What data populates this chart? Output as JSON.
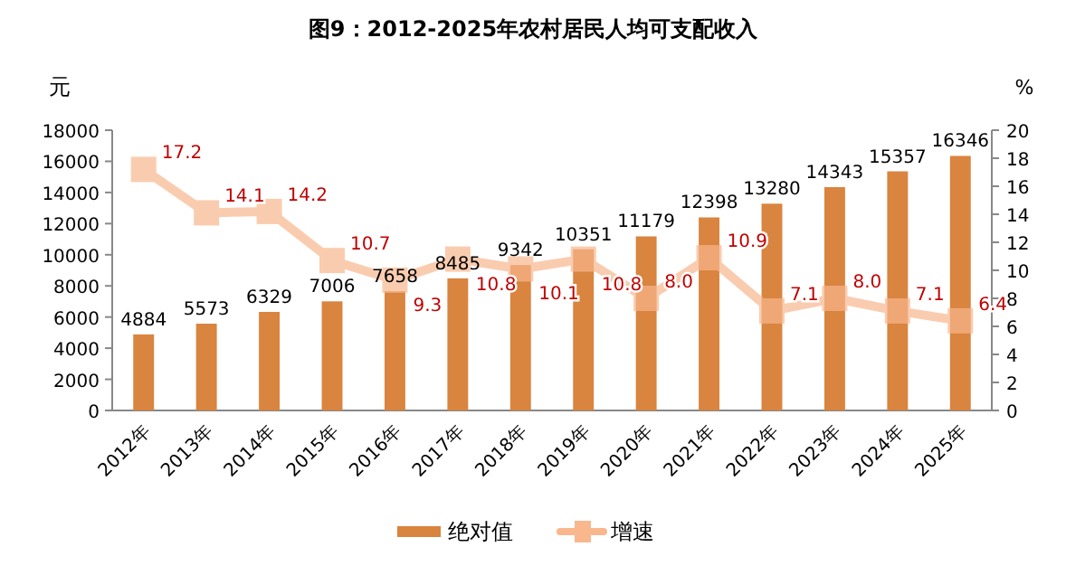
{
  "chart_data": {
    "type": "bar",
    "title": "图9：2012-2025年农村居民人均可支配收入",
    "categories": [
      "2012年",
      "2013年",
      "2014年",
      "2015年",
      "2016年",
      "2017年",
      "2018年",
      "2019年",
      "2020年",
      "2021年",
      "2022年",
      "2023年",
      "2024年",
      "2025年"
    ],
    "series": [
      {
        "name": "绝对值",
        "color": "#d9843f",
        "values": [
          4884,
          5573,
          6329,
          7006,
          7658,
          8485,
          9342,
          10351,
          11179,
          12398,
          13280,
          14343,
          15357,
          16346
        ]
      },
      {
        "name": "增速",
        "type": "line",
        "axis": "y2",
        "color": "#f9b78e",
        "values": [
          17.2,
          14.1,
          14.2,
          10.7,
          9.3,
          10.8,
          10.1,
          10.8,
          8.0,
          10.9,
          7.1,
          8.0,
          7.1,
          6.4
        ],
        "value_labels": [
          "17.2",
          "14.1",
          "14.2",
          "10.7",
          "9.3",
          "10.8",
          "10.1",
          "10.8",
          "8.0",
          "10.9",
          "7.1",
          "8.0",
          "7.1",
          "6.4"
        ]
      }
    ],
    "ylabel": "元",
    "y2label": "%",
    "ylim": [
      0,
      18000
    ],
    "yticks": [
      0,
      2000,
      4000,
      6000,
      8000,
      10000,
      12000,
      14000,
      16000,
      18000
    ],
    "y2lim": [
      0,
      20
    ],
    "y2ticks": [
      0,
      2,
      4,
      6,
      8,
      10,
      12,
      14,
      16,
      18,
      20
    ],
    "data_labels": true,
    "marker": "square",
    "legend": "bottom"
  }
}
